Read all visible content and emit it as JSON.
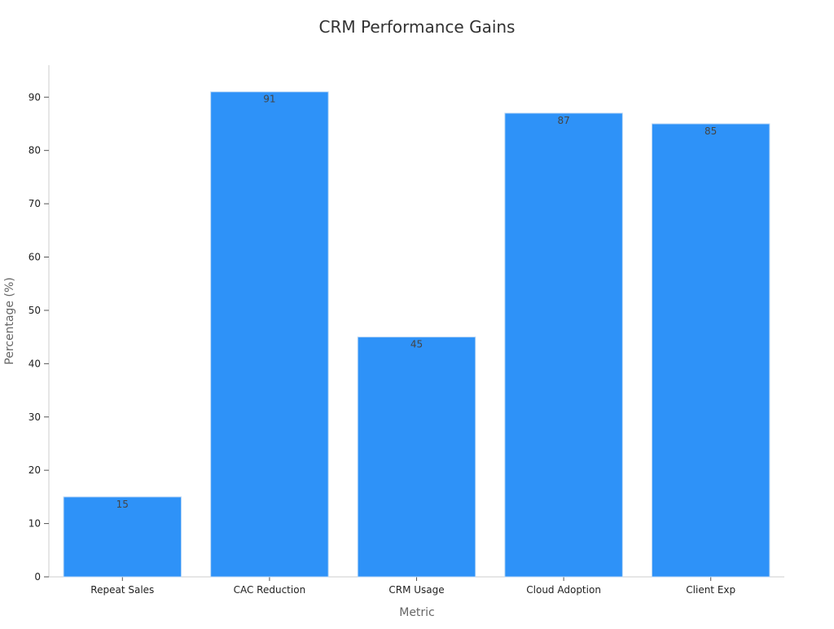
{
  "chart_data": {
    "type": "bar",
    "title": "CRM Performance Gains",
    "xlabel": "Metric",
    "ylabel": "Percentage (%)",
    "categories": [
      "Repeat Sales",
      "CAC Reduction",
      "CRM Usage",
      "Cloud Adoption",
      "Client Exp"
    ],
    "values": [
      15,
      91,
      45,
      87,
      85
    ],
    "ylim": [
      0,
      96
    ],
    "yticks": [
      0,
      10,
      20,
      30,
      40,
      50,
      60,
      70,
      80,
      90
    ],
    "bar_color": "#2e92f8",
    "grid": false,
    "legend": "none"
  }
}
